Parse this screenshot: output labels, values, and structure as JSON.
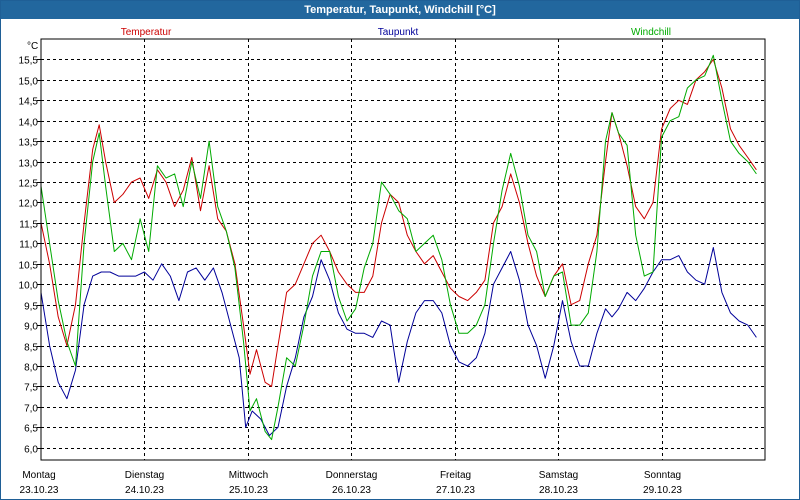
{
  "window": {
    "title": "Temperatur, Taupunkt, Windchill [°C]"
  },
  "chart_data": {
    "type": "line",
    "title": "Temperatur, Taupunkt, Windchill [°C]",
    "ylabel": "°C",
    "xlabel": "",
    "ylim": [
      5.7,
      16.0
    ],
    "yticks": [
      6.0,
      6.5,
      7.0,
      7.5,
      8.0,
      8.5,
      9.0,
      9.5,
      10.0,
      10.5,
      11.0,
      11.5,
      12.0,
      12.5,
      13.0,
      13.5,
      14.0,
      14.5,
      15.0,
      15.5
    ],
    "ytick_labels": [
      "6,0",
      "6,5",
      "7,0",
      "7,5",
      "8,0",
      "8,5",
      "9,0",
      "9,5",
      "10,0",
      "10,5",
      "11,0",
      "11,5",
      "12,0",
      "12,5",
      "13,0",
      "13,5",
      "14,0",
      "14,5",
      "15,0",
      "15,5"
    ],
    "xlim": [
      0,
      168
    ],
    "x_unit": "hours since 23.10.23 00:00",
    "days": [
      {
        "day": "Montag",
        "date": "23.10.23",
        "start": 0
      },
      {
        "day": "Dienstag",
        "date": "24.10.23",
        "start": 24
      },
      {
        "day": "Mittwoch",
        "date": "25.10.23",
        "start": 48
      },
      {
        "day": "Donnerstag",
        "date": "26.10.23",
        "start": 72
      },
      {
        "day": "Freitag",
        "date": "27.10.23",
        "start": 96
      },
      {
        "day": "Samstag",
        "date": "28.10.23",
        "start": 120
      },
      {
        "day": "Sonntag",
        "date": "29.10.23",
        "start": 144
      }
    ],
    "grid": true,
    "legend_position": "top",
    "series": [
      {
        "name": "Temperatur",
        "color": "#cc0000",
        "points": [
          [
            0,
            11.5
          ],
          [
            2,
            10.5
          ],
          [
            4,
            9.2
          ],
          [
            6,
            8.5
          ],
          [
            8,
            9.5
          ],
          [
            10,
            11.5
          ],
          [
            12,
            13.3
          ],
          [
            13.5,
            13.9
          ],
          [
            15,
            13.0
          ],
          [
            17,
            12.0
          ],
          [
            19,
            12.2
          ],
          [
            21,
            12.5
          ],
          [
            23,
            12.6
          ],
          [
            25,
            12.1
          ],
          [
            27,
            12.8
          ],
          [
            29,
            12.5
          ],
          [
            31,
            11.9
          ],
          [
            33,
            12.3
          ],
          [
            35,
            13.1
          ],
          [
            37,
            11.8
          ],
          [
            39,
            12.9
          ],
          [
            41,
            11.6
          ],
          [
            43,
            11.3
          ],
          [
            45,
            10.5
          ],
          [
            47,
            9.0
          ],
          [
            48.5,
            7.8
          ],
          [
            50,
            8.4
          ],
          [
            52,
            7.6
          ],
          [
            53.5,
            7.5
          ],
          [
            55,
            8.5
          ],
          [
            57,
            9.8
          ],
          [
            59,
            10.0
          ],
          [
            61,
            10.5
          ],
          [
            63,
            11.0
          ],
          [
            65,
            11.2
          ],
          [
            67,
            10.8
          ],
          [
            69,
            10.3
          ],
          [
            71,
            10.0
          ],
          [
            73,
            9.8
          ],
          [
            75,
            9.8
          ],
          [
            77,
            10.2
          ],
          [
            79,
            11.5
          ],
          [
            81,
            12.2
          ],
          [
            83,
            12.0
          ],
          [
            85,
            11.2
          ],
          [
            87,
            10.8
          ],
          [
            89,
            10.5
          ],
          [
            91,
            10.7
          ],
          [
            93,
            10.3
          ],
          [
            95,
            9.9
          ],
          [
            97,
            9.7
          ],
          [
            99,
            9.6
          ],
          [
            101,
            9.8
          ],
          [
            103,
            10.1
          ],
          [
            105,
            11.5
          ],
          [
            107,
            11.9
          ],
          [
            109,
            12.7
          ],
          [
            111,
            12.0
          ],
          [
            113,
            11.0
          ],
          [
            115,
            10.2
          ],
          [
            117,
            9.7
          ],
          [
            119,
            10.2
          ],
          [
            121,
            10.5
          ],
          [
            123,
            9.5
          ],
          [
            125,
            9.6
          ],
          [
            127,
            10.5
          ],
          [
            129,
            11.2
          ],
          [
            131,
            13.0
          ],
          [
            132.5,
            14.2
          ],
          [
            134,
            13.7
          ],
          [
            136,
            12.9
          ],
          [
            138,
            11.9
          ],
          [
            140,
            11.6
          ],
          [
            142,
            12.0
          ],
          [
            144,
            13.8
          ],
          [
            146,
            14.3
          ],
          [
            148,
            14.5
          ],
          [
            150,
            14.4
          ],
          [
            152,
            15.0
          ],
          [
            154,
            15.2
          ],
          [
            156,
            15.5
          ],
          [
            158,
            14.8
          ],
          [
            160,
            13.8
          ],
          [
            162,
            13.4
          ],
          [
            164,
            13.1
          ],
          [
            166,
            12.8
          ]
        ]
      },
      {
        "name": "Taupunkt",
        "color": "#000099",
        "points": [
          [
            0,
            9.8
          ],
          [
            2,
            8.5
          ],
          [
            4,
            7.6
          ],
          [
            6,
            7.2
          ],
          [
            8,
            7.9
          ],
          [
            10,
            9.5
          ],
          [
            12,
            10.2
          ],
          [
            14,
            10.3
          ],
          [
            16,
            10.3
          ],
          [
            18,
            10.2
          ],
          [
            20,
            10.2
          ],
          [
            22,
            10.2
          ],
          [
            24,
            10.3
          ],
          [
            26,
            10.1
          ],
          [
            28,
            10.5
          ],
          [
            30,
            10.2
          ],
          [
            32,
            9.6
          ],
          [
            34,
            10.3
          ],
          [
            36,
            10.4
          ],
          [
            38,
            10.1
          ],
          [
            40,
            10.4
          ],
          [
            42,
            9.8
          ],
          [
            44,
            9.0
          ],
          [
            46,
            8.2
          ],
          [
            47.5,
            6.5
          ],
          [
            49,
            6.9
          ],
          [
            51,
            6.7
          ],
          [
            53,
            6.3
          ],
          [
            55,
            6.5
          ],
          [
            57,
            7.5
          ],
          [
            59,
            8.2
          ],
          [
            61,
            9.2
          ],
          [
            63,
            9.7
          ],
          [
            65,
            10.6
          ],
          [
            67,
            10.1
          ],
          [
            69,
            9.3
          ],
          [
            71,
            8.9
          ],
          [
            73,
            8.8
          ],
          [
            75,
            8.8
          ],
          [
            77,
            8.7
          ],
          [
            79,
            9.1
          ],
          [
            81,
            9.0
          ],
          [
            83,
            7.6
          ],
          [
            85,
            8.6
          ],
          [
            87,
            9.3
          ],
          [
            89,
            9.6
          ],
          [
            91,
            9.6
          ],
          [
            93,
            9.3
          ],
          [
            95,
            8.5
          ],
          [
            97,
            8.1
          ],
          [
            99,
            8.0
          ],
          [
            101,
            8.2
          ],
          [
            103,
            8.8
          ],
          [
            105,
            10.0
          ],
          [
            107,
            10.4
          ],
          [
            109,
            10.8
          ],
          [
            111,
            10.1
          ],
          [
            113,
            9.0
          ],
          [
            115,
            8.5
          ],
          [
            117,
            7.7
          ],
          [
            119,
            8.5
          ],
          [
            121,
            9.6
          ],
          [
            123,
            8.6
          ],
          [
            125,
            8.0
          ],
          [
            127,
            8.0
          ],
          [
            129,
            8.8
          ],
          [
            131,
            9.4
          ],
          [
            132.5,
            9.2
          ],
          [
            134,
            9.4
          ],
          [
            136,
            9.8
          ],
          [
            138,
            9.6
          ],
          [
            140,
            9.9
          ],
          [
            142,
            10.3
          ],
          [
            144,
            10.6
          ],
          [
            146,
            10.6
          ],
          [
            148,
            10.7
          ],
          [
            150,
            10.3
          ],
          [
            152,
            10.1
          ],
          [
            154,
            10.0
          ],
          [
            156,
            10.9
          ],
          [
            158,
            9.8
          ],
          [
            160,
            9.3
          ],
          [
            162,
            9.1
          ],
          [
            164,
            9.0
          ],
          [
            166,
            8.7
          ]
        ]
      },
      {
        "name": "Windchill",
        "color": "#00aa00",
        "points": [
          [
            0,
            12.4
          ],
          [
            2,
            11.0
          ],
          [
            4,
            9.6
          ],
          [
            6,
            8.6
          ],
          [
            8,
            8.0
          ],
          [
            10,
            11.0
          ],
          [
            12,
            13.0
          ],
          [
            13.5,
            13.7
          ],
          [
            15,
            12.4
          ],
          [
            17,
            10.8
          ],
          [
            19,
            11.0
          ],
          [
            21,
            10.6
          ],
          [
            23,
            11.6
          ],
          [
            25,
            10.8
          ],
          [
            27,
            12.9
          ],
          [
            29,
            12.6
          ],
          [
            31,
            12.7
          ],
          [
            33,
            11.9
          ],
          [
            35,
            13.0
          ],
          [
            37,
            12.1
          ],
          [
            39,
            13.5
          ],
          [
            41,
            11.9
          ],
          [
            43,
            11.3
          ],
          [
            45,
            10.4
          ],
          [
            47,
            8.6
          ],
          [
            48.5,
            6.9
          ],
          [
            50,
            7.2
          ],
          [
            52,
            6.4
          ],
          [
            53.5,
            6.2
          ],
          [
            55,
            7.0
          ],
          [
            57,
            8.2
          ],
          [
            59,
            8.0
          ],
          [
            61,
            9.0
          ],
          [
            63,
            10.2
          ],
          [
            65,
            10.8
          ],
          [
            67,
            10.8
          ],
          [
            69,
            9.7
          ],
          [
            71,
            9.1
          ],
          [
            73,
            9.4
          ],
          [
            75,
            10.4
          ],
          [
            77,
            11.0
          ],
          [
            79,
            12.5
          ],
          [
            81,
            12.2
          ],
          [
            83,
            11.8
          ],
          [
            85,
            11.6
          ],
          [
            87,
            10.8
          ],
          [
            89,
            11.0
          ],
          [
            91,
            11.2
          ],
          [
            93,
            10.6
          ],
          [
            95,
            9.5
          ],
          [
            97,
            8.8
          ],
          [
            99,
            8.8
          ],
          [
            101,
            9.0
          ],
          [
            103,
            9.5
          ],
          [
            105,
            11.0
          ],
          [
            107,
            12.3
          ],
          [
            109,
            13.2
          ],
          [
            111,
            12.4
          ],
          [
            113,
            11.2
          ],
          [
            115,
            10.8
          ],
          [
            117,
            9.7
          ],
          [
            119,
            10.2
          ],
          [
            121,
            10.3
          ],
          [
            123,
            9.0
          ],
          [
            125,
            9.0
          ],
          [
            127,
            9.3
          ],
          [
            129,
            10.8
          ],
          [
            131,
            13.5
          ],
          [
            132.5,
            14.2
          ],
          [
            134,
            13.7
          ],
          [
            136,
            13.4
          ],
          [
            138,
            11.2
          ],
          [
            140,
            10.2
          ],
          [
            142,
            10.3
          ],
          [
            144,
            13.6
          ],
          [
            146,
            14.0
          ],
          [
            148,
            14.1
          ],
          [
            150,
            14.8
          ],
          [
            152,
            15.0
          ],
          [
            154,
            15.1
          ],
          [
            156,
            15.6
          ],
          [
            158,
            14.5
          ],
          [
            160,
            13.5
          ],
          [
            162,
            13.2
          ],
          [
            164,
            13.0
          ],
          [
            166,
            12.7
          ]
        ]
      }
    ]
  }
}
